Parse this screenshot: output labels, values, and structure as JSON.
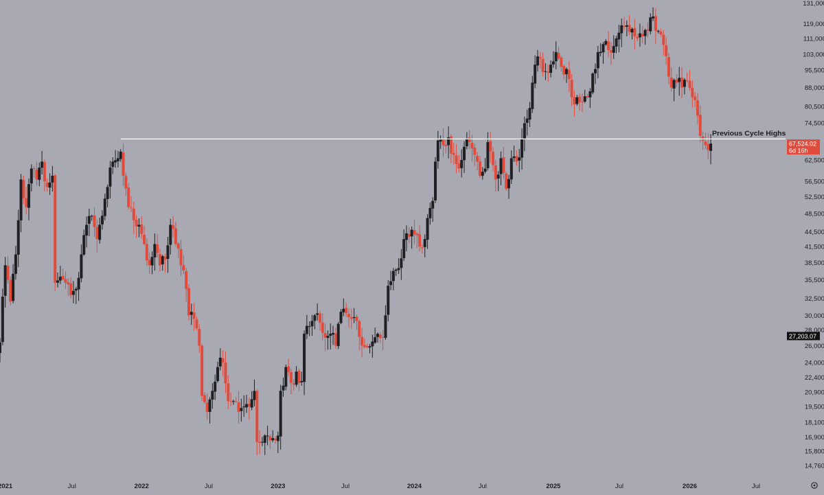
{
  "theme": {
    "background": "#a8a9b2",
    "up_color": "#1f2023",
    "down_color": "#e04b3c",
    "text_color": "#1c1d21",
    "line_color": "#ffffff"
  },
  "chart_data": {
    "type": "candlestick",
    "interval": "weekly",
    "y_scale": "log",
    "ylim": [
      14200,
      133000
    ],
    "xlim": [
      "2020-12-21",
      "2026-09-14"
    ],
    "y_ticks": [
      "131,000.00",
      "119,000.00",
      "111,000.00",
      "103,000.00",
      "95,500.00",
      "88,000.00",
      "80,500.00",
      "74,500.00",
      "62,500.00",
      "56,500.00",
      "52,500.00",
      "48,500.00",
      "44,500.00",
      "41,500.00",
      "38,500.00",
      "35,500.00",
      "32,500.00",
      "30,000.00",
      "28,000.00",
      "26,000.00",
      "24,000.00",
      "22,400.00",
      "20,900.00",
      "19,500.00",
      "18,100.00",
      "16,900.00",
      "15,800.00",
      "14,760.00"
    ],
    "x_ticks": [
      {
        "label": "2021",
        "date": "2021-01-04",
        "bold": true
      },
      {
        "label": "Jul",
        "date": "2021-07-01",
        "bold": false
      },
      {
        "label": "2022",
        "date": "2022-01-03",
        "bold": true
      },
      {
        "label": "Jul",
        "date": "2022-07-01",
        "bold": false
      },
      {
        "label": "2023",
        "date": "2023-01-02",
        "bold": true
      },
      {
        "label": "Jul",
        "date": "2023-07-01",
        "bold": false
      },
      {
        "label": "2024",
        "date": "2024-01-01",
        "bold": true
      },
      {
        "label": "Jul",
        "date": "2024-07-01",
        "bold": false
      },
      {
        "label": "2025",
        "date": "2025-01-06",
        "bold": true
      },
      {
        "label": "Jul",
        "date": "2025-07-01",
        "bold": false
      },
      {
        "label": "2026",
        "date": "2026-01-05",
        "bold": true
      },
      {
        "label": "Jul",
        "date": "2026-07-01",
        "bold": false
      }
    ],
    "annotation": {
      "label": "Previous Cycle Highs",
      "value": 69000,
      "start": "2021-11-08"
    },
    "price_labels": [
      {
        "label": "67,524.02",
        "sublabel": "6d 16h",
        "value": 67524.02,
        "style": "red"
      },
      {
        "label": "27,203.07",
        "sublabel": "",
        "value": 27203.07,
        "style": "dark"
      }
    ],
    "closes": [
      {
        "date": "2020-12-21",
        "close": 26400
      },
      {
        "date": "2021-01-04",
        "close": 38000
      },
      {
        "date": "2021-01-18",
        "close": 32000
      },
      {
        "date": "2021-02-01",
        "close": 40000
      },
      {
        "date": "2021-02-15",
        "close": 57000
      },
      {
        "date": "2021-03-01",
        "close": 50000
      },
      {
        "date": "2021-03-15",
        "close": 60000
      },
      {
        "date": "2021-03-29",
        "close": 57000
      },
      {
        "date": "2021-04-12",
        "close": 62000
      },
      {
        "date": "2021-04-26",
        "close": 55000
      },
      {
        "date": "2021-05-10",
        "close": 58000
      },
      {
        "date": "2021-05-17",
        "close": 35000
      },
      {
        "date": "2021-05-31",
        "close": 36000
      },
      {
        "date": "2021-06-14",
        "close": 35000
      },
      {
        "date": "2021-06-28",
        "close": 33000
      },
      {
        "date": "2021-07-12",
        "close": 34000
      },
      {
        "date": "2021-07-26",
        "close": 40000
      },
      {
        "date": "2021-08-09",
        "close": 46000
      },
      {
        "date": "2021-08-23",
        "close": 48000
      },
      {
        "date": "2021-09-06",
        "close": 43000
      },
      {
        "date": "2021-09-20",
        "close": 48000
      },
      {
        "date": "2021-10-04",
        "close": 55000
      },
      {
        "date": "2021-10-18",
        "close": 62000
      },
      {
        "date": "2021-11-01",
        "close": 63000
      },
      {
        "date": "2021-11-08",
        "close": 65000
      },
      {
        "date": "2021-11-15",
        "close": 58000
      },
      {
        "date": "2021-11-29",
        "close": 50000
      },
      {
        "date": "2021-12-13",
        "close": 47000
      },
      {
        "date": "2021-12-27",
        "close": 46000
      },
      {
        "date": "2022-01-10",
        "close": 42000
      },
      {
        "date": "2022-01-24",
        "close": 38000
      },
      {
        "date": "2022-02-07",
        "close": 42000
      },
      {
        "date": "2022-02-21",
        "close": 38000
      },
      {
        "date": "2022-03-07",
        "close": 39000
      },
      {
        "date": "2022-03-21",
        "close": 46000
      },
      {
        "date": "2022-04-04",
        "close": 42000
      },
      {
        "date": "2022-04-18",
        "close": 38000
      },
      {
        "date": "2022-05-02",
        "close": 34000
      },
      {
        "date": "2022-05-09",
        "close": 30000
      },
      {
        "date": "2022-05-23",
        "close": 29500
      },
      {
        "date": "2022-06-06",
        "close": 26000
      },
      {
        "date": "2022-06-13",
        "close": 20500
      },
      {
        "date": "2022-06-27",
        "close": 19000
      },
      {
        "date": "2022-07-11",
        "close": 21000
      },
      {
        "date": "2022-07-25",
        "close": 23500
      },
      {
        "date": "2022-08-08",
        "close": 24000
      },
      {
        "date": "2022-08-22",
        "close": 20000
      },
      {
        "date": "2022-09-05",
        "close": 20000
      },
      {
        "date": "2022-09-19",
        "close": 19000
      },
      {
        "date": "2022-10-03",
        "close": 19500
      },
      {
        "date": "2022-10-17",
        "close": 19500
      },
      {
        "date": "2022-10-31",
        "close": 21000
      },
      {
        "date": "2022-11-07",
        "close": 16500
      },
      {
        "date": "2022-11-21",
        "close": 16500
      },
      {
        "date": "2022-12-05",
        "close": 17000
      },
      {
        "date": "2022-12-19",
        "close": 16800
      },
      {
        "date": "2023-01-02",
        "close": 17000
      },
      {
        "date": "2023-01-09",
        "close": 21000
      },
      {
        "date": "2023-01-23",
        "close": 23500
      },
      {
        "date": "2023-02-06",
        "close": 21800
      },
      {
        "date": "2023-02-20",
        "close": 23000
      },
      {
        "date": "2023-03-06",
        "close": 22000
      },
      {
        "date": "2023-03-13",
        "close": 27500
      },
      {
        "date": "2023-03-27",
        "close": 28500
      },
      {
        "date": "2023-04-10",
        "close": 30000
      },
      {
        "date": "2023-04-24",
        "close": 29000
      },
      {
        "date": "2023-05-08",
        "close": 27000
      },
      {
        "date": "2023-05-22",
        "close": 27500
      },
      {
        "date": "2023-06-05",
        "close": 26000
      },
      {
        "date": "2023-06-19",
        "close": 30500
      },
      {
        "date": "2023-07-03",
        "close": 30300
      },
      {
        "date": "2023-07-17",
        "close": 29500
      },
      {
        "date": "2023-07-31",
        "close": 29200
      },
      {
        "date": "2023-08-14",
        "close": 26000
      },
      {
        "date": "2023-08-28",
        "close": 25800
      },
      {
        "date": "2023-09-11",
        "close": 26500
      },
      {
        "date": "2023-09-25",
        "close": 27500
      },
      {
        "date": "2023-10-09",
        "close": 27000
      },
      {
        "date": "2023-10-16",
        "close": 30000
      },
      {
        "date": "2023-10-23",
        "close": 34500
      },
      {
        "date": "2023-11-06",
        "close": 37000
      },
      {
        "date": "2023-11-20",
        "close": 37500
      },
      {
        "date": "2023-12-04",
        "close": 43000
      },
      {
        "date": "2023-12-18",
        "close": 43500
      },
      {
        "date": "2024-01-01",
        "close": 44000
      },
      {
        "date": "2024-01-15",
        "close": 41500
      },
      {
        "date": "2024-01-29",
        "close": 43000
      },
      {
        "date": "2024-02-05",
        "close": 47500
      },
      {
        "date": "2024-02-19",
        "close": 51500
      },
      {
        "date": "2024-02-26",
        "close": 62000
      },
      {
        "date": "2024-03-04",
        "close": 68500
      },
      {
        "date": "2024-03-18",
        "close": 67000
      },
      {
        "date": "2024-04-01",
        "close": 69500
      },
      {
        "date": "2024-04-15",
        "close": 64000
      },
      {
        "date": "2024-04-29",
        "close": 60000
      },
      {
        "date": "2024-05-13",
        "close": 66500
      },
      {
        "date": "2024-05-27",
        "close": 68000
      },
      {
        "date": "2024-06-10",
        "close": 64000
      },
      {
        "date": "2024-06-24",
        "close": 58000
      },
      {
        "date": "2024-07-08",
        "close": 60000
      },
      {
        "date": "2024-07-15",
        "close": 68000
      },
      {
        "date": "2024-07-29",
        "close": 61000
      },
      {
        "date": "2024-08-05",
        "close": 57000
      },
      {
        "date": "2024-08-19",
        "close": 63000
      },
      {
        "date": "2024-09-02",
        "close": 54500
      },
      {
        "date": "2024-09-16",
        "close": 63000
      },
      {
        "date": "2024-09-30",
        "close": 62000
      },
      {
        "date": "2024-10-14",
        "close": 69000
      },
      {
        "date": "2024-10-28",
        "close": 76000
      },
      {
        "date": "2024-11-11",
        "close": 90000
      },
      {
        "date": "2024-11-18",
        "close": 98000
      },
      {
        "date": "2024-12-02",
        "close": 101000
      },
      {
        "date": "2024-12-16",
        "close": 95000
      },
      {
        "date": "2024-12-30",
        "close": 98000
      },
      {
        "date": "2025-01-13",
        "close": 104000
      },
      {
        "date": "2025-01-27",
        "close": 97000
      },
      {
        "date": "2025-02-10",
        "close": 96000
      },
      {
        "date": "2025-02-24",
        "close": 84000
      },
      {
        "date": "2025-03-10",
        "close": 84000
      },
      {
        "date": "2025-03-24",
        "close": 82000
      },
      {
        "date": "2025-04-07",
        "close": 84000
      },
      {
        "date": "2025-04-21",
        "close": 94000
      },
      {
        "date": "2025-05-05",
        "close": 104000
      },
      {
        "date": "2025-05-19",
        "close": 108000
      },
      {
        "date": "2025-06-02",
        "close": 105000
      },
      {
        "date": "2025-06-16",
        "close": 107000
      },
      {
        "date": "2025-07-07",
        "close": 118000
      },
      {
        "date": "2025-07-21",
        "close": 118000
      },
      {
        "date": "2025-08-04",
        "close": 116000
      },
      {
        "date": "2025-08-18",
        "close": 111000
      },
      {
        "date": "2025-09-01",
        "close": 112000
      },
      {
        "date": "2025-09-15",
        "close": 115000
      },
      {
        "date": "2025-09-29",
        "close": 123000
      },
      {
        "date": "2025-10-06",
        "close": 115000
      },
      {
        "date": "2025-10-20",
        "close": 113000
      },
      {
        "date": "2025-11-03",
        "close": 102000
      },
      {
        "date": "2025-11-17",
        "close": 88000
      },
      {
        "date": "2025-12-01",
        "close": 90000
      },
      {
        "date": "2025-12-15",
        "close": 88000
      },
      {
        "date": "2025-12-29",
        "close": 91000
      },
      {
        "date": "2026-01-12",
        "close": 84000
      },
      {
        "date": "2026-01-26",
        "close": 77000
      },
      {
        "date": "2026-02-02",
        "close": 70000
      },
      {
        "date": "2026-02-09",
        "close": 68500
      },
      {
        "date": "2026-02-16",
        "close": 67000
      },
      {
        "date": "2026-02-23",
        "close": 65500
      },
      {
        "date": "2026-03-02",
        "close": 67524
      }
    ]
  }
}
